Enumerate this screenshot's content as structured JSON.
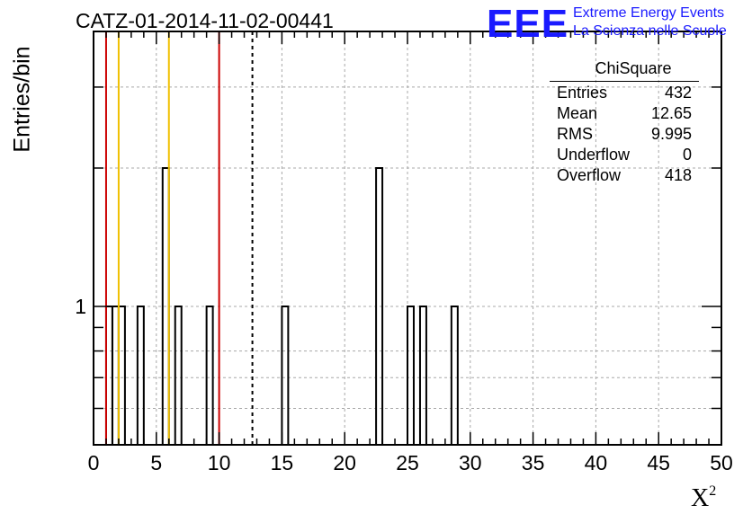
{
  "title": "CATZ-01-2014-11-02-00441",
  "logo": {
    "mark": "EEE",
    "line1": "Extreme Energy Events",
    "line2": "La Scienza nelle Scuole",
    "color": "#1a1aff"
  },
  "stats": {
    "title": "ChiSquare",
    "rows": [
      {
        "label": "Entries",
        "value": "432"
      },
      {
        "label": "Mean",
        "value": "12.65"
      },
      {
        "label": "RMS",
        "value": "9.995"
      },
      {
        "label": "Underflow",
        "value": "0"
      },
      {
        "label": "Overflow",
        "value": "418"
      }
    ]
  },
  "chart_data": {
    "type": "bar",
    "title": "CATZ-01-2014-11-02-00441",
    "xlabel": "X²",
    "ylabel": "Entries/bin",
    "xlim": [
      0,
      50
    ],
    "ylog": true,
    "grid": true,
    "xticks": [
      0,
      5,
      10,
      15,
      20,
      25,
      30,
      35,
      40,
      45,
      50
    ],
    "ytick_labels": [
      {
        "value": 1,
        "label": "1"
      }
    ],
    "bins": [
      {
        "x": 1.0,
        "count": 1
      },
      {
        "x": 1.5,
        "count": 1
      },
      {
        "x": 2.0,
        "count": 1
      },
      {
        "x": 3.5,
        "count": 1
      },
      {
        "x": 5.5,
        "count": 2
      },
      {
        "x": 6.5,
        "count": 1
      },
      {
        "x": 9.0,
        "count": 1
      },
      {
        "x": 15.0,
        "count": 1
      },
      {
        "x": 22.5,
        "count": 2
      },
      {
        "x": 25.0,
        "count": 1
      },
      {
        "x": 26.0,
        "count": 1
      },
      {
        "x": 28.5,
        "count": 1
      }
    ],
    "vlines": [
      {
        "x": 1.0,
        "color": "#cc0000",
        "style": "solid"
      },
      {
        "x": 2.0,
        "color": "#f0c000",
        "style": "solid"
      },
      {
        "x": 6.0,
        "color": "#f0c000",
        "style": "solid"
      },
      {
        "x": 10.0,
        "color": "#cc0000",
        "style": "solid"
      },
      {
        "x": 12.65,
        "color": "#000000",
        "style": "dashed"
      }
    ]
  }
}
